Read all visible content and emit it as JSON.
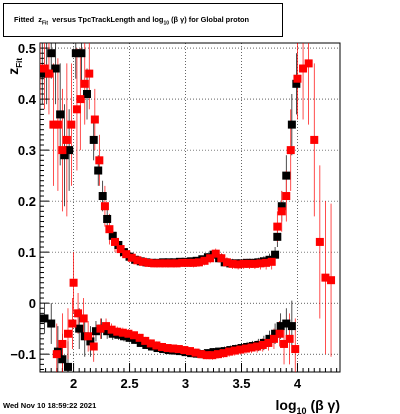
{
  "title": {
    "pre": "Fitted",
    "var": "z",
    "var_sub": "Fit",
    "mid": "versus TpcTrackLength and log",
    "log_sub": "10",
    "post": "(β γ) for Global proton"
  },
  "timestamp": "Wed Nov 10 18:59:22 2021",
  "colors": {
    "series_black": "#000000",
    "series_red": "#ff0000",
    "grid": "#000000"
  },
  "chart_data": {
    "type": "scatter",
    "title": "Fitted z_Fit versus TpcTrackLength and log_10 (β γ) for Global proton",
    "xlabel": {
      "main": "log",
      "sub": "10",
      "tail": "(β γ)"
    },
    "ylabel": {
      "main": "z",
      "sub": "Fit"
    },
    "xlim": [
      1.7,
      4.38
    ],
    "ylim": [
      -0.135,
      0.51
    ],
    "xticks": [
      2,
      2.5,
      3,
      3.5,
      4
    ],
    "xtick_labels": [
      "2",
      "2.5",
      "3",
      "3.5",
      "4"
    ],
    "yticks": [
      -0.1,
      0,
      0.1,
      0.2,
      0.3,
      0.4,
      0.5
    ],
    "ytick_labels": [
      "−0.1",
      "0",
      "0.1",
      "0.2",
      "0.3",
      "0.4",
      "0.5"
    ],
    "grid": true,
    "series": [
      {
        "marker": "square",
        "color": "#000000",
        "points": [
          [
            1.72,
            0.45,
            0.06
          ],
          [
            1.76,
            0.45,
            0.06
          ],
          [
            1.8,
            0.49,
            0.05
          ],
          [
            1.84,
            0.46,
            0.07
          ],
          [
            1.88,
            0.37,
            0.1
          ],
          [
            1.92,
            0.29,
            0.1
          ],
          [
            1.96,
            0.3,
            0.08
          ],
          [
            2.02,
            0.49,
            0.05
          ],
          [
            2.07,
            0.49,
            0.06
          ],
          [
            2.12,
            0.41,
            0.05
          ],
          [
            2.18,
            0.32,
            0.04
          ],
          [
            2.22,
            0.26,
            0.03
          ],
          [
            2.26,
            0.21,
            0.03
          ],
          [
            2.3,
            0.165,
            0.02
          ],
          [
            2.35,
            0.132,
            0.015
          ],
          [
            2.4,
            0.114,
            0.012
          ],
          [
            2.45,
            0.1,
            0.01
          ],
          [
            2.5,
            0.091,
            0.008
          ],
          [
            2.55,
            0.085,
            0.007
          ],
          [
            2.6,
            0.082,
            0.006
          ],
          [
            2.65,
            0.08,
            0.006
          ],
          [
            2.7,
            0.079,
            0.006
          ],
          [
            2.75,
            0.079,
            0.006
          ],
          [
            2.8,
            0.08,
            0.006
          ],
          [
            2.85,
            0.08,
            0.006
          ],
          [
            2.9,
            0.08,
            0.006
          ],
          [
            2.95,
            0.081,
            0.006
          ],
          [
            3.0,
            0.081,
            0.006
          ],
          [
            3.05,
            0.082,
            0.006
          ],
          [
            3.1,
            0.083,
            0.007
          ],
          [
            3.15,
            0.086,
            0.007
          ],
          [
            3.2,
            0.09,
            0.008
          ],
          [
            3.25,
            0.095,
            0.008
          ],
          [
            3.3,
            0.088,
            0.008
          ],
          [
            3.35,
            0.08,
            0.008
          ],
          [
            3.4,
            0.078,
            0.008
          ],
          [
            3.45,
            0.078,
            0.008
          ],
          [
            3.5,
            0.078,
            0.008
          ],
          [
            3.55,
            0.079,
            0.008
          ],
          [
            3.6,
            0.079,
            0.008
          ],
          [
            3.65,
            0.08,
            0.009
          ],
          [
            3.7,
            0.082,
            0.01
          ],
          [
            3.75,
            0.085,
            0.012
          ],
          [
            3.8,
            0.095,
            0.015
          ],
          [
            3.82,
            0.13,
            0.02
          ],
          [
            3.86,
            0.19,
            0.03
          ],
          [
            3.9,
            0.25,
            0.04
          ],
          [
            3.95,
            0.35,
            0.06
          ],
          [
            3.99,
            0.43,
            0.06
          ],
          [
            1.74,
            -0.03,
            0.03
          ],
          [
            1.8,
            -0.04,
            0.04
          ],
          [
            1.86,
            -0.095,
            0.05
          ],
          [
            1.9,
            -0.11,
            0.05
          ],
          [
            1.95,
            -0.125,
            0.05
          ],
          [
            2.05,
            -0.05,
            0.04
          ],
          [
            2.1,
            -0.065,
            0.04
          ],
          [
            2.15,
            -0.075,
            0.03
          ],
          [
            2.2,
            -0.055,
            0.02
          ],
          [
            2.25,
            -0.05,
            0.02
          ],
          [
            2.3,
            -0.055,
            0.015
          ],
          [
            2.35,
            -0.06,
            0.012
          ],
          [
            2.4,
            -0.062,
            0.01
          ],
          [
            2.45,
            -0.065,
            0.01
          ],
          [
            2.5,
            -0.068,
            0.009
          ],
          [
            2.55,
            -0.072,
            0.008
          ],
          [
            2.6,
            -0.078,
            0.008
          ],
          [
            2.65,
            -0.082,
            0.008
          ],
          [
            2.7,
            -0.085,
            0.008
          ],
          [
            2.75,
            -0.088,
            0.008
          ],
          [
            2.8,
            -0.09,
            0.008
          ],
          [
            2.85,
            -0.092,
            0.008
          ],
          [
            2.9,
            -0.093,
            0.008
          ],
          [
            2.95,
            -0.094,
            0.008
          ],
          [
            3.0,
            -0.096,
            0.008
          ],
          [
            3.05,
            -0.098,
            0.008
          ],
          [
            3.1,
            -0.099,
            0.008
          ],
          [
            3.15,
            -0.1,
            0.008
          ],
          [
            3.2,
            -0.098,
            0.008
          ],
          [
            3.25,
            -0.096,
            0.008
          ],
          [
            3.3,
            -0.095,
            0.008
          ],
          [
            3.35,
            -0.094,
            0.009
          ],
          [
            3.4,
            -0.092,
            0.009
          ],
          [
            3.45,
            -0.09,
            0.009
          ],
          [
            3.5,
            -0.088,
            0.01
          ],
          [
            3.55,
            -0.086,
            0.01
          ],
          [
            3.6,
            -0.084,
            0.01
          ],
          [
            3.65,
            -0.082,
            0.012
          ],
          [
            3.7,
            -0.078,
            0.014
          ],
          [
            3.75,
            -0.07,
            0.016
          ],
          [
            3.8,
            -0.06,
            0.02
          ],
          [
            3.85,
            -0.045,
            0.025
          ],
          [
            3.9,
            -0.04,
            0.03
          ],
          [
            3.95,
            -0.045,
            0.05
          ]
        ]
      },
      {
        "marker": "square",
        "color": "#ff0000",
        "points": [
          [
            1.7,
            0.46,
            0.06
          ],
          [
            1.74,
            0.46,
            0.08
          ],
          [
            1.78,
            0.45,
            0.08
          ],
          [
            1.82,
            0.35,
            0.12
          ],
          [
            1.86,
            0.35,
            0.13
          ],
          [
            1.9,
            0.3,
            0.12
          ],
          [
            1.94,
            0.32,
            0.15
          ],
          [
            1.98,
            0.35,
            0.12
          ],
          [
            2.03,
            0.38,
            0.12
          ],
          [
            2.06,
            0.4,
            0.1
          ],
          [
            2.1,
            0.43,
            0.08
          ],
          [
            2.14,
            0.45,
            0.07
          ],
          [
            2.19,
            0.36,
            0.06
          ],
          [
            2.23,
            0.28,
            0.05
          ],
          [
            2.28,
            0.19,
            0.04
          ],
          [
            2.32,
            0.145,
            0.03
          ],
          [
            2.37,
            0.12,
            0.02
          ],
          [
            2.42,
            0.106,
            0.015
          ],
          [
            2.47,
            0.096,
            0.012
          ],
          [
            2.52,
            0.089,
            0.01
          ],
          [
            2.57,
            0.084,
            0.009
          ],
          [
            2.62,
            0.081,
            0.008
          ],
          [
            2.67,
            0.079,
            0.008
          ],
          [
            2.72,
            0.078,
            0.008
          ],
          [
            2.77,
            0.078,
            0.008
          ],
          [
            2.82,
            0.078,
            0.008
          ],
          [
            2.87,
            0.078,
            0.008
          ],
          [
            2.92,
            0.078,
            0.008
          ],
          [
            2.97,
            0.079,
            0.008
          ],
          [
            3.02,
            0.079,
            0.008
          ],
          [
            3.07,
            0.079,
            0.009
          ],
          [
            3.12,
            0.08,
            0.009
          ],
          [
            3.17,
            0.083,
            0.009
          ],
          [
            3.22,
            0.088,
            0.01
          ],
          [
            3.27,
            0.097,
            0.01
          ],
          [
            3.32,
            0.088,
            0.01
          ],
          [
            3.37,
            0.08,
            0.01
          ],
          [
            3.42,
            0.077,
            0.01
          ],
          [
            3.47,
            0.076,
            0.01
          ],
          [
            3.52,
            0.077,
            0.01
          ],
          [
            3.57,
            0.077,
            0.01
          ],
          [
            3.62,
            0.077,
            0.01
          ],
          [
            3.67,
            0.078,
            0.012
          ],
          [
            3.72,
            0.079,
            0.013
          ],
          [
            3.77,
            0.081,
            0.015
          ],
          [
            3.82,
            0.15,
            0.03
          ],
          [
            3.86,
            0.18,
            0.04
          ],
          [
            3.9,
            0.21,
            0.05
          ],
          [
            3.94,
            0.3,
            0.08
          ],
          [
            4.0,
            0.44,
            0.08
          ],
          [
            4.05,
            0.46,
            0.1
          ],
          [
            4.1,
            0.47,
            0.12
          ],
          [
            4.15,
            0.32,
            0.15
          ],
          [
            4.2,
            0.12,
            0.15
          ],
          [
            4.25,
            0.05,
            0.15
          ],
          [
            4.3,
            0.045,
            0.15
          ],
          [
            2.0,
            0.04,
            0.06
          ],
          [
            1.85,
            -0.1,
            0.06
          ],
          [
            1.9,
            -0.08,
            0.06
          ],
          [
            1.95,
            -0.06,
            0.05
          ],
          [
            1.99,
            -0.04,
            0.05
          ],
          [
            2.04,
            -0.02,
            0.04
          ],
          [
            2.09,
            -0.03,
            0.04
          ],
          [
            2.13,
            -0.065,
            0.03
          ],
          [
            2.18,
            -0.085,
            0.03
          ],
          [
            2.24,
            -0.05,
            0.02
          ],
          [
            2.29,
            -0.045,
            0.015
          ],
          [
            2.34,
            -0.052,
            0.012
          ],
          [
            2.39,
            -0.056,
            0.01
          ],
          [
            2.44,
            -0.058,
            0.01
          ],
          [
            2.49,
            -0.06,
            0.009
          ],
          [
            2.54,
            -0.063,
            0.008
          ],
          [
            2.59,
            -0.068,
            0.008
          ],
          [
            2.64,
            -0.074,
            0.008
          ],
          [
            2.69,
            -0.079,
            0.008
          ],
          [
            2.74,
            -0.083,
            0.008
          ],
          [
            2.79,
            -0.086,
            0.008
          ],
          [
            2.84,
            -0.088,
            0.008
          ],
          [
            2.89,
            -0.089,
            0.008
          ],
          [
            2.94,
            -0.09,
            0.008
          ],
          [
            2.99,
            -0.092,
            0.008
          ],
          [
            3.04,
            -0.094,
            0.008
          ],
          [
            3.09,
            -0.097,
            0.008
          ],
          [
            3.14,
            -0.1,
            0.008
          ],
          [
            3.19,
            -0.102,
            0.008
          ],
          [
            3.24,
            -0.102,
            0.009
          ],
          [
            3.29,
            -0.1,
            0.009
          ],
          [
            3.34,
            -0.098,
            0.009
          ],
          [
            3.39,
            -0.095,
            0.01
          ],
          [
            3.44,
            -0.093,
            0.01
          ],
          [
            3.49,
            -0.091,
            0.01
          ],
          [
            3.54,
            -0.089,
            0.01
          ],
          [
            3.59,
            -0.087,
            0.011
          ],
          [
            3.64,
            -0.085,
            0.012
          ],
          [
            3.69,
            -0.082,
            0.013
          ],
          [
            3.74,
            -0.078,
            0.015
          ],
          [
            3.79,
            -0.07,
            0.02
          ],
          [
            3.84,
            -0.06,
            0.025
          ],
          [
            3.88,
            -0.08,
            0.04
          ],
          [
            3.93,
            -0.07,
            0.05
          ],
          [
            3.98,
            -0.09,
            0.06
          ]
        ]
      }
    ]
  }
}
